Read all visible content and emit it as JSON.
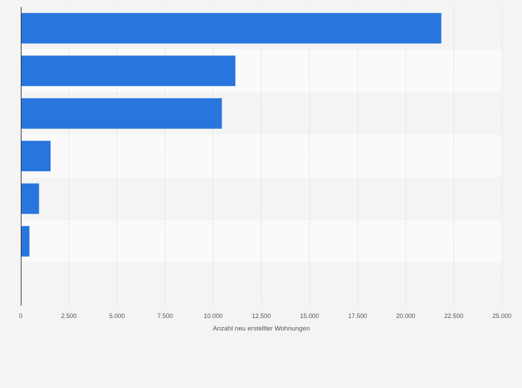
{
  "chart_data": {
    "type": "bar",
    "orientation": "horizontal",
    "title": "",
    "xlabel": "Anzahl neu erstellter Wohnungen",
    "ylabel": "",
    "categories": [
      "",
      "",
      "",
      "",
      "",
      ""
    ],
    "values": [
      21850,
      11150,
      10450,
      1550,
      950,
      450
    ],
    "xlim": [
      0,
      25000
    ],
    "xticks": [
      0,
      2500,
      5000,
      7500,
      10000,
      12500,
      15000,
      17500,
      20000,
      22500,
      25000
    ],
    "xtick_labels": [
      "0",
      "2.500",
      "5.000",
      "7.500",
      "10.000",
      "12.500",
      "15.000",
      "17.500",
      "20.000",
      "22.500",
      "25.000"
    ],
    "grid": true,
    "bar_color": "#2876dd",
    "band_colors": [
      "#f4f4f4",
      "#fafafa"
    ],
    "legend": "none"
  }
}
